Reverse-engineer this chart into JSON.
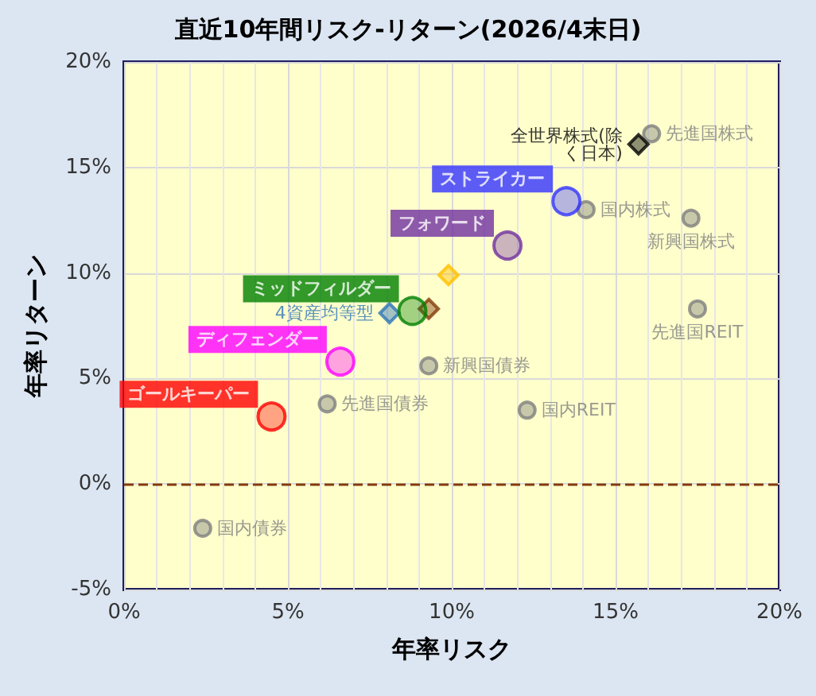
{
  "chart_data": {
    "type": "scatter",
    "title": "直近10年間リスク-リターン(2026/4末日)",
    "xlabel": "年率リスク",
    "ylabel": "年率リターン",
    "xlim": [
      0,
      20
    ],
    "xticks": [
      {
        "value": 0,
        "label": "0%"
      },
      {
        "value": 5,
        "label": "5%"
      },
      {
        "value": 10,
        "label": "10%"
      },
      {
        "value": 15,
        "label": "15%"
      },
      {
        "value": 20,
        "label": "20%"
      }
    ],
    "ylim": [
      -5,
      20
    ],
    "yticks": [
      {
        "value": -5,
        "label": "-5%"
      },
      {
        "value": 0,
        "label": "0%"
      },
      {
        "value": 5,
        "label": "5%"
      },
      {
        "value": 10,
        "label": "10%"
      },
      {
        "value": 15,
        "label": "15%"
      },
      {
        "value": 20,
        "label": "20%"
      }
    ],
    "grid": true,
    "legend": false,
    "marker": "circle",
    "ref_lines": [
      {
        "axis": "y",
        "value": 0,
        "color": "#843c0c",
        "line_style": "dashed"
      }
    ],
    "series": [
      {
        "name": "先進国株式",
        "color": "#808080",
        "x": [
          16.1
        ],
        "values": [
          16.6
        ]
      },
      {
        "name": "全世界株式(除く日本)",
        "color": "#000000",
        "marker": "diamond",
        "x": [
          15.7
        ],
        "values": [
          16.1
        ]
      },
      {
        "name": "国内株式",
        "color": "#808080",
        "x": [
          14.1
        ],
        "values": [
          13.0
        ]
      },
      {
        "name": "新興国株式",
        "color": "#808080",
        "x": [
          17.3
        ],
        "values": [
          12.6
        ]
      },
      {
        "name": "先進国REIT",
        "color": "#808080",
        "x": [
          17.5
        ],
        "values": [
          8.3
        ]
      },
      {
        "name": "新興国債券",
        "color": "#808080",
        "x": [
          9.3
        ],
        "values": [
          5.6
        ]
      },
      {
        "name": "先進国債券",
        "color": "#808080",
        "x": [
          6.2
        ],
        "values": [
          3.8
        ]
      },
      {
        "name": "国内REIT",
        "color": "#808080",
        "x": [
          12.3
        ],
        "values": [
          3.5
        ]
      },
      {
        "name": "国内債券",
        "color": "#808080",
        "x": [
          2.4
        ],
        "values": [
          -2.1
        ]
      },
      {
        "name": "4資産均等型",
        "color": "#2e75b6",
        "marker": "diamond",
        "x": [
          8.1
        ],
        "values": [
          8.1
        ]
      },
      {
        "color": "#ffc000",
        "marker": "diamond",
        "x": [
          9.9
        ],
        "values": [
          9.9
        ]
      },
      {
        "color": "#843c0c",
        "marker": "diamond",
        "x": [
          9.3
        ],
        "values": [
          8.3
        ]
      },
      {
        "color": "#3333ff",
        "x": [
          13.5
        ],
        "values": [
          13.4
        ]
      },
      {
        "color": "#7030a0",
        "x": [
          11.7
        ],
        "values": [
          11.3
        ]
      },
      {
        "color": "#008000",
        "x": [
          8.8
        ],
        "values": [
          8.2
        ]
      },
      {
        "color": "#ff00ff",
        "x": [
          6.6
        ],
        "values": [
          5.8
        ]
      },
      {
        "color": "#ff0000",
        "x": [
          4.5
        ],
        "values": [
          3.2
        ]
      }
    ],
    "annotations": [
      {
        "text": "ストライカー",
        "x": 13.5,
        "y": 13.4
      },
      {
        "text": "フォワード",
        "x": 11.7,
        "y": 11.3
      },
      {
        "text": "ミッドフィルダー",
        "x": 8.8,
        "y": 8.2
      },
      {
        "text": "ディフェンダー",
        "x": 6.6,
        "y": 5.8
      },
      {
        "text": "ゴールキーパー",
        "x": 4.5,
        "y": 3.2
      }
    ]
  }
}
